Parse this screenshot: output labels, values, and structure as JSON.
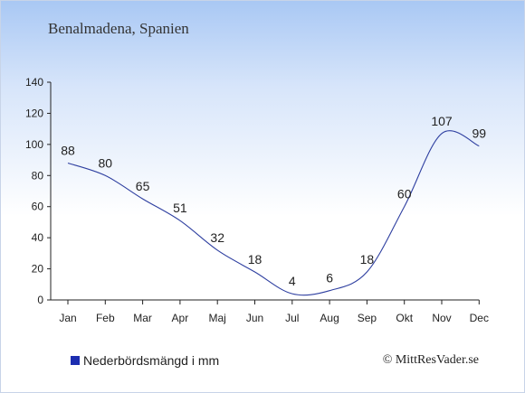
{
  "chart_data": {
    "type": "line",
    "title": "Benalmadena, Spanien",
    "categories": [
      "Jan",
      "Feb",
      "Mar",
      "Apr",
      "Maj",
      "Jun",
      "Jul",
      "Aug",
      "Sep",
      "Okt",
      "Nov",
      "Dec"
    ],
    "series": [
      {
        "name": "Nederbördsmängd i mm",
        "values": [
          88,
          80,
          65,
          51,
          32,
          18,
          4,
          6,
          18,
          60,
          107,
          99
        ]
      }
    ],
    "ylim": [
      0,
      140
    ],
    "yticks": [
      0,
      20,
      40,
      60,
      80,
      100,
      120,
      140
    ],
    "grid": false,
    "legend_placement": "bottom-left",
    "colors": {
      "line": "#2e3fa0",
      "legend_swatch": "#1c2db0"
    }
  },
  "credit": "© MittResVader.se"
}
